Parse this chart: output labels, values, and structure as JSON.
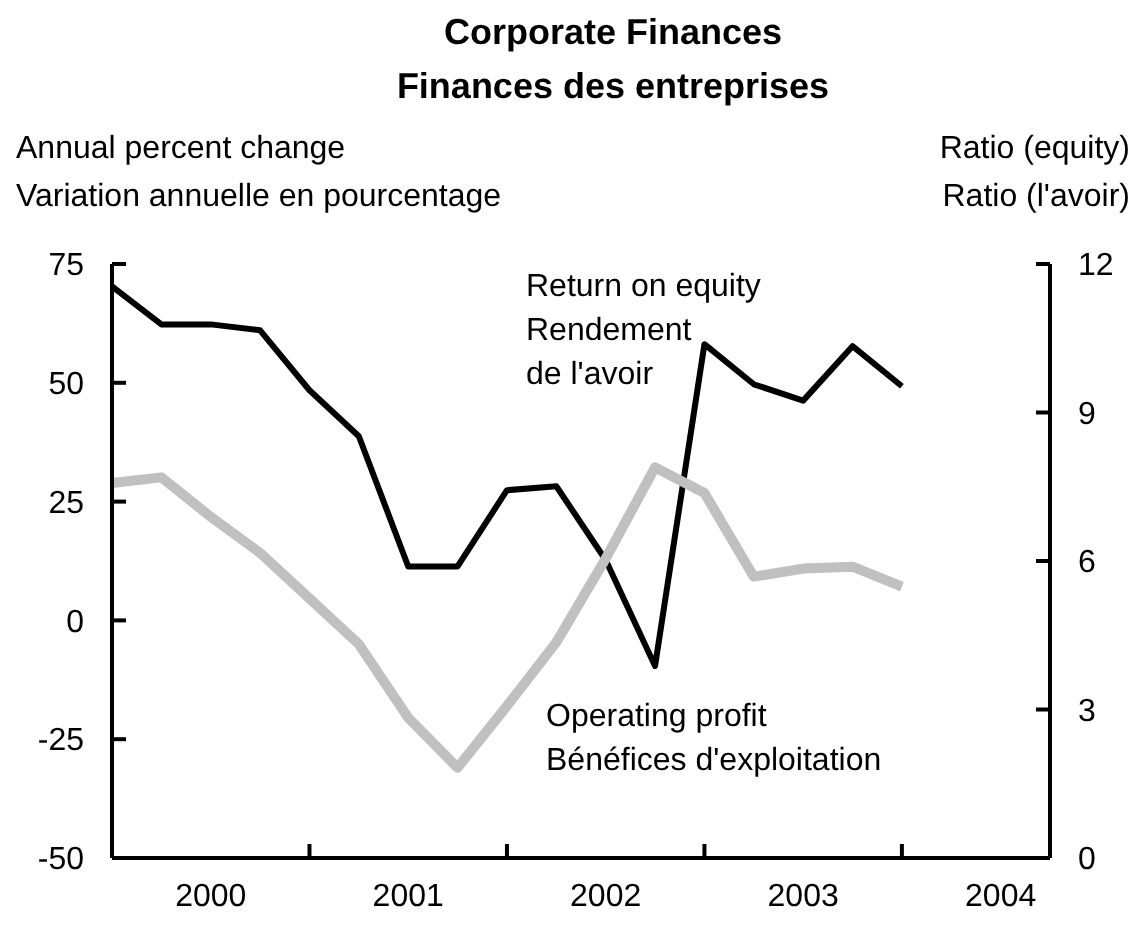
{
  "chart_data": {
    "type": "line",
    "title": "Corporate Finances",
    "subtitle": "Finances des entreprises",
    "ylabel": "Annual percent change\nVariation annuelle en pourcentage",
    "y2label": "Ratio (equity)\nRatio (l'avoir)",
    "x": [
      2000,
      2000.25,
      2000.5,
      2000.75,
      2001,
      2001.25,
      2001.5,
      2001.75,
      2002,
      2002.25,
      2002.5,
      2002.75,
      2003,
      2003.25,
      2003.5,
      2003.75,
      2004
    ],
    "xlim": [
      2000,
      2004.75
    ],
    "xticks": [
      {
        "value": 2001,
        "label": null
      },
      {
        "value": 2002,
        "label": null
      },
      {
        "value": 2003,
        "label": null
      },
      {
        "value": 2004,
        "label": null
      },
      {
        "value": 2000.5,
        "label": "2000"
      },
      {
        "value": 2001.5,
        "label": "2001"
      },
      {
        "value": 2002.5,
        "label": "2002"
      },
      {
        "value": 2003.5,
        "label": "2003"
      },
      {
        "value": 2004.5,
        "label": "2004"
      }
    ],
    "ylim": [
      -50,
      75
    ],
    "yticks": [
      -50,
      -25,
      0,
      25,
      50,
      75
    ],
    "y2lim": [
      0,
      12
    ],
    "y2ticks": [
      0,
      3,
      6,
      9,
      12
    ],
    "series": [
      {
        "name": "Return on equity\nRendement\nde l'avoir",
        "color": "#000000",
        "axis": "y2",
        "values": [
          11.55,
          10.78,
          10.78,
          10.66,
          9.45,
          8.52,
          5.89,
          5.89,
          7.43,
          7.51,
          6.02,
          3.88,
          10.38,
          9.57,
          9.24,
          10.34,
          9.53
        ]
      },
      {
        "name": "Operating profit\nBénéfices d'exploitation",
        "color": "#c0c0c0",
        "values": [
          28.9,
          30.1,
          21.8,
          14.2,
          4.6,
          -5.0,
          -20.5,
          -31.0,
          -18.0,
          -4.6,
          13.0,
          32.2,
          26.8,
          9.2,
          10.9,
          11.3,
          7.1
        ]
      }
    ],
    "grid": false,
    "legend": false,
    "line_style": "solid",
    "marker": "none"
  }
}
